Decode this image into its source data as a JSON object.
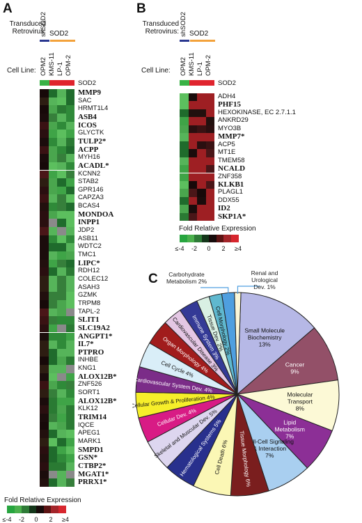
{
  "panels": {
    "a": "A",
    "b": "B",
    "c": "C"
  },
  "labels": {
    "transduced_line1": "Transduced",
    "transduced_line2": "Retrovirus:",
    "shsod2": "shSOD2",
    "sod2_group": "SOD2",
    "cell_line": "Cell Line:",
    "sod2_row": "SOD2",
    "fold": "Fold Relative Expression"
  },
  "cell_lines": [
    "OPM2",
    "KMS-11",
    "LP-1",
    "OPM-2"
  ],
  "scale": {
    "labels": [
      "≤-4",
      "-2",
      "0",
      "2",
      "≥4"
    ],
    "colors": [
      "#27a53f",
      "#4bb04d",
      "#2e7b37",
      "#14361a",
      "#170b0b",
      "#5c1414",
      "#a3252a",
      "#d7262e"
    ]
  },
  "heatmap_a": {
    "genes": [
      {
        "name": "MMP9",
        "bold": true
      },
      {
        "name": "SAC",
        "bold": false
      },
      {
        "name": "HRMT1L4",
        "bold": false
      },
      {
        "name": "ASB4",
        "bold": true
      },
      {
        "name": "ICOS",
        "bold": true
      },
      {
        "name": "GLYCTK",
        "bold": false
      },
      {
        "name": "TULP2*",
        "bold": true
      },
      {
        "name": "ACPP",
        "bold": true
      },
      {
        "name": "MYH16",
        "bold": false
      },
      {
        "name": "ACADL*",
        "bold": true
      },
      {
        "name": "KCNN2",
        "bold": false
      },
      {
        "name": "STAB2",
        "bold": false
      },
      {
        "name": "GPR146",
        "bold": false
      },
      {
        "name": "CAPZA3",
        "bold": false
      },
      {
        "name": "BCAS4",
        "bold": false
      },
      {
        "name": "MONDOA",
        "bold": true
      },
      {
        "name": "INPP1",
        "bold": true
      },
      {
        "name": "JDP2",
        "bold": false
      },
      {
        "name": "ASB11",
        "bold": false
      },
      {
        "name": "WDTC2",
        "bold": false
      },
      {
        "name": "TMC1",
        "bold": false
      },
      {
        "name": "LIPC*",
        "bold": true
      },
      {
        "name": "RDH12",
        "bold": false
      },
      {
        "name": "COLEC12",
        "bold": false
      },
      {
        "name": "ASAH3",
        "bold": false
      },
      {
        "name": "GZMK",
        "bold": false
      },
      {
        "name": "TRPM8",
        "bold": false
      },
      {
        "name": "TAPL-2",
        "bold": false
      },
      {
        "name": "SLIT1",
        "bold": true
      },
      {
        "name": "SLC19A2",
        "bold": true
      },
      {
        "name": "ANGPT1*",
        "bold": true
      },
      {
        "name": "IL7*",
        "bold": true
      },
      {
        "name": "PTPRO",
        "bold": true
      },
      {
        "name": "INHBE",
        "bold": false
      },
      {
        "name": "KNG1",
        "bold": false
      },
      {
        "name": "ALOX12B*",
        "bold": true
      },
      {
        "name": "ZNF526",
        "bold": false
      },
      {
        "name": "SORT1",
        "bold": false
      },
      {
        "name": "ALOX12B*",
        "bold": true
      },
      {
        "name": "KLK12",
        "bold": false
      },
      {
        "name": "TRIM14",
        "bold": true
      },
      {
        "name": "IQCE",
        "bold": false
      },
      {
        "name": "APEG1",
        "bold": false
      },
      {
        "name": "MARK1",
        "bold": false
      },
      {
        "name": "SMPD1",
        "bold": true
      },
      {
        "name": "GSN*",
        "bold": true
      },
      {
        "name": "CTBP2*",
        "bold": true
      },
      {
        "name": "MGAT1*",
        "bold": true
      },
      {
        "name": "PRRX1*",
        "bold": true
      }
    ]
  },
  "heatmap_b": {
    "genes": [
      {
        "name": "ADH4",
        "bold": false
      },
      {
        "name": "PHF15",
        "bold": true
      },
      {
        "name": "HEXOKINASE, EC 2.7.1.1",
        "bold": false
      },
      {
        "name": "ANKRD29",
        "bold": false
      },
      {
        "name": "MYO3B",
        "bold": false
      },
      {
        "name": "MMP7*",
        "bold": true
      },
      {
        "name": "ACP5",
        "bold": false
      },
      {
        "name": "MT1E",
        "bold": false
      },
      {
        "name": "TMEM58",
        "bold": false
      },
      {
        "name": "NCALD",
        "bold": true
      },
      {
        "name": "ZNF358",
        "bold": false
      },
      {
        "name": "KLKB1",
        "bold": true
      },
      {
        "name": "PLAGL1",
        "bold": false
      },
      {
        "name": "DDX55",
        "bold": false
      },
      {
        "name": "ID2",
        "bold": true
      },
      {
        "name": "SKP1A*",
        "bold": true
      }
    ]
  },
  "chart_data": {
    "type": "pie",
    "title": "",
    "slices": [
      {
        "label": "Small Molecule Biochemistry",
        "value": 13,
        "display": "13%",
        "color": "#b6b8e6"
      },
      {
        "label": "Cancer",
        "value": 9,
        "display": "9%",
        "color": "#935068"
      },
      {
        "label": "Molecular Transport",
        "value": 8,
        "display": "8%",
        "color": "#fcf9d6"
      },
      {
        "label": "Lipid Metabolism",
        "value": 7,
        "display": "7%",
        "color": "#8c2f96"
      },
      {
        "label": "Cell-Cell Signaling & Interaction",
        "value": 7,
        "display": "7%",
        "color": "#a9cff0"
      },
      {
        "label": "Tissue Morphology",
        "value": 6,
        "display": "6%",
        "color": "#7a1e1e"
      },
      {
        "label": "Cell Death",
        "value": 6,
        "display": "6%",
        "color": "#fbf7b5"
      },
      {
        "label": "Hematological Systems",
        "value": 5,
        "display": "5%",
        "color": "#28308d"
      },
      {
        "label": "Skeletal and Muscular Dev.",
        "value": 5,
        "display": "5%",
        "color": "#ddd6ef"
      },
      {
        "label": "Cellular Dev.",
        "value": 4,
        "display": "4%",
        "color": "#d81b85"
      },
      {
        "label": "Cellular Growth & Proliferation",
        "value": 4,
        "display": "4%",
        "color": "#f6ee2a"
      },
      {
        "label": "Cardiovascular System Dev.",
        "value": 4,
        "display": "4%",
        "color": "#7b2c88"
      },
      {
        "label": "Cell Cycle",
        "value": 4,
        "display": "4%",
        "color": "#d9eef8"
      },
      {
        "label": "Organ Morphology",
        "value": 4,
        "display": "4%",
        "color": "#a11c1c"
      },
      {
        "label": "Cardiovascular Disease",
        "value": 3,
        "display": "3%",
        "color": "#e4c7e4"
      },
      {
        "label": "Immune System",
        "value": 3,
        "display": "3%",
        "color": "#343a96"
      },
      {
        "label": "Tissue Dev.",
        "value": 2,
        "display": "2%",
        "color": "#d9f0e3"
      },
      {
        "label": "Cell Morphology",
        "value": 2,
        "display": "2%",
        "color": "#5fb8cf"
      },
      {
        "label": "Carbohydrate Metabolism",
        "value": 2,
        "display": "2%",
        "color": "#4f9fe0"
      },
      {
        "label": "Renal and Urological Dev.",
        "value": 1,
        "display": "1%",
        "color": "#fbf7d8"
      }
    ]
  }
}
